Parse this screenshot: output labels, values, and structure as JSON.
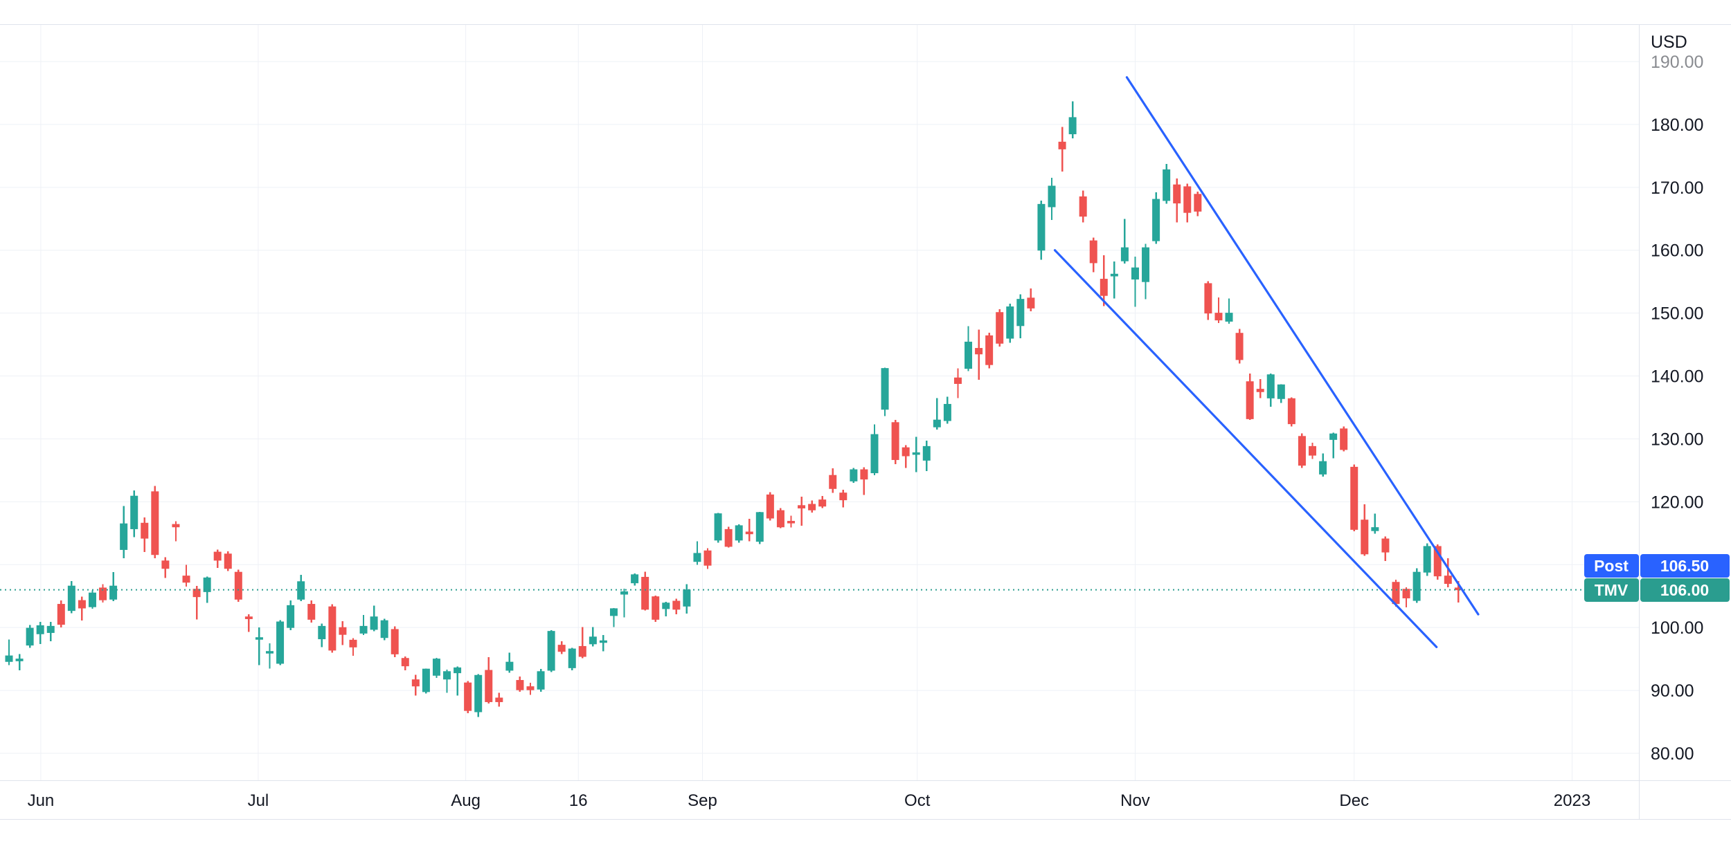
{
  "price_axis": {
    "unit": "USD",
    "ticks": [
      "190.00",
      "180.00",
      "170.00",
      "160.00",
      "150.00",
      "140.00",
      "130.00",
      "120.00",
      "110.00",
      "100.00",
      "90.00",
      "80.00"
    ]
  },
  "price_labels": {
    "post": {
      "label": "Post",
      "value": "106.50",
      "color": "#2962ff"
    },
    "series": {
      "label": "TMV",
      "value": "106.00",
      "color": "#2a9d8f"
    }
  },
  "chart_data": {
    "type": "candlestick",
    "symbol": "TMV",
    "unit": "USD",
    "title": "",
    "ylim": [
      75.5,
      196
    ],
    "grid": true,
    "up_color": "#26a69a",
    "down_color": "#ef5350",
    "trend_color": "#2962ff",
    "reference_line": {
      "price": 106.0,
      "style": "dotted",
      "color": "#2a9d8f",
      "note": "last close / TMV price line"
    },
    "post_market_price": 106.5,
    "last_close": 106.0,
    "x_ticks": [
      {
        "label": "Jun",
        "index": 3.05
      },
      {
        "label": "Jul",
        "index": 23.9
      },
      {
        "label": "Aug",
        "index": 43.8
      },
      {
        "label": "16",
        "index": 54.6
      },
      {
        "label": "Sep",
        "index": 66.5
      },
      {
        "label": "Oct",
        "index": 87.1
      },
      {
        "label": "Nov",
        "index": 108.0
      },
      {
        "label": "Dec",
        "index": 129.0
      },
      {
        "label": "2023",
        "index": 149.9
      }
    ],
    "trend_lines": [
      {
        "x1_index": 107.2,
        "price1": 187.5,
        "x2_index": 140.9,
        "price2": 102.1
      },
      {
        "x1_index": 100.3,
        "price1": 160.0,
        "x2_index": 136.9,
        "price2": 96.9
      }
    ],
    "candles_format": [
      "open",
      "high",
      "low",
      "close"
    ],
    "candles": [
      [
        94.6,
        98.1,
        94.0,
        95.5
      ],
      [
        94.7,
        95.8,
        93.2,
        95.0
      ],
      [
        97.2,
        100.4,
        96.8,
        99.9
      ],
      [
        99.0,
        100.9,
        97.4,
        100.3
      ],
      [
        99.2,
        100.9,
        97.8,
        100.2
      ],
      [
        103.7,
        104.3,
        100.0,
        100.5
      ],
      [
        102.7,
        107.4,
        102.3,
        106.6
      ],
      [
        104.3,
        104.9,
        101.1,
        103.1
      ],
      [
        103.3,
        105.9,
        103.0,
        105.5
      ],
      [
        106.3,
        106.9,
        104.0,
        104.4
      ],
      [
        104.5,
        108.8,
        104.2,
        106.6
      ],
      [
        112.4,
        119.3,
        111.0,
        116.5
      ],
      [
        115.7,
        121.8,
        114.4,
        120.9
      ],
      [
        116.6,
        117.5,
        112.0,
        114.2
      ],
      [
        121.6,
        122.5,
        111.0,
        111.6
      ],
      [
        110.6,
        111.2,
        107.9,
        109.4
      ],
      [
        116.4,
        116.9,
        113.7,
        116.0
      ],
      [
        108.2,
        110.0,
        106.5,
        107.2
      ],
      [
        106.1,
        106.6,
        101.3,
        104.9
      ],
      [
        105.7,
        108.1,
        103.9,
        107.9
      ],
      [
        112.0,
        112.4,
        109.5,
        110.7
      ],
      [
        111.7,
        112.1,
        109.0,
        109.4
      ],
      [
        108.8,
        109.2,
        104.1,
        104.5
      ],
      [
        101.7,
        102.1,
        99.3,
        101.4
      ],
      [
        98.2,
        100.0,
        94.0,
        98.4
      ],
      [
        96.0,
        97.5,
        93.5,
        96.2
      ],
      [
        94.3,
        101.2,
        94.0,
        100.9
      ],
      [
        100.0,
        104.3,
        99.6,
        103.5
      ],
      [
        104.5,
        108.4,
        104.2,
        107.3
      ],
      [
        103.7,
        104.3,
        100.8,
        101.3
      ],
      [
        98.2,
        100.6,
        96.9,
        100.2
      ],
      [
        103.3,
        103.7,
        96.0,
        96.4
      ],
      [
        100.0,
        101.0,
        97.2,
        98.9
      ],
      [
        98.0,
        98.3,
        95.5,
        96.9
      ],
      [
        99.1,
        102.0,
        98.8,
        100.2
      ],
      [
        99.7,
        103.5,
        99.4,
        101.7
      ],
      [
        98.4,
        101.4,
        98.0,
        101.1
      ],
      [
        99.7,
        100.2,
        95.3,
        95.8
      ],
      [
        95.1,
        95.4,
        93.2,
        93.9
      ],
      [
        91.7,
        92.5,
        89.2,
        90.7
      ],
      [
        89.8,
        93.5,
        89.5,
        93.4
      ],
      [
        92.4,
        95.2,
        92.0,
        95.0
      ],
      [
        91.8,
        93.3,
        89.6,
        93.0
      ],
      [
        92.8,
        93.8,
        89.2,
        93.6
      ],
      [
        91.2,
        91.5,
        86.4,
        86.8
      ],
      [
        86.6,
        92.6,
        85.8,
        92.4
      ],
      [
        93.2,
        95.3,
        87.9,
        88.2
      ],
      [
        88.8,
        89.6,
        87.4,
        88.2
      ],
      [
        93.2,
        96.0,
        92.8,
        94.5
      ],
      [
        91.6,
        92.2,
        89.8,
        90.1
      ],
      [
        90.6,
        91.2,
        89.3,
        90.1
      ],
      [
        90.2,
        93.4,
        89.8,
        93.0
      ],
      [
        93.2,
        99.6,
        92.9,
        99.4
      ],
      [
        97.2,
        97.8,
        95.8,
        96.2
      ],
      [
        93.6,
        96.8,
        93.2,
        96.6
      ],
      [
        97.0,
        100.1,
        95.1,
        95.4
      ],
      [
        97.4,
        100.1,
        97.0,
        98.5
      ],
      [
        97.7,
        98.8,
        96.2,
        97.9
      ],
      [
        101.9,
        103.1,
        100.1,
        103.0
      ],
      [
        105.3,
        106.2,
        101.6,
        105.7
      ],
      [
        107.1,
        108.6,
        106.7,
        108.4
      ],
      [
        108.0,
        108.9,
        102.7,
        102.9
      ],
      [
        104.9,
        105.1,
        100.9,
        101.3
      ],
      [
        103.0,
        104.1,
        101.8,
        103.9
      ],
      [
        104.2,
        104.6,
        102.1,
        102.9
      ],
      [
        103.4,
        106.9,
        102.2,
        106.0
      ],
      [
        110.5,
        113.7,
        110.0,
        111.8
      ],
      [
        112.2,
        112.6,
        109.3,
        109.9
      ],
      [
        113.9,
        118.2,
        113.5,
        118.1
      ],
      [
        115.6,
        116.0,
        112.7,
        112.9
      ],
      [
        113.9,
        116.4,
        113.5,
        116.2
      ],
      [
        115.2,
        117.3,
        113.7,
        114.9
      ],
      [
        113.7,
        118.4,
        113.3,
        118.3
      ],
      [
        121.1,
        121.5,
        117.0,
        117.4
      ],
      [
        118.6,
        119.0,
        115.8,
        116.0
      ],
      [
        116.9,
        117.8,
        115.9,
        116.7
      ],
      [
        119.4,
        120.8,
        116.2,
        119.0
      ],
      [
        119.6,
        120.2,
        118.3,
        118.7
      ],
      [
        120.3,
        120.9,
        119.0,
        119.3
      ],
      [
        124.2,
        125.3,
        121.4,
        122.1
      ],
      [
        121.4,
        121.9,
        119.1,
        120.3
      ],
      [
        123.3,
        125.4,
        123.0,
        125.1
      ],
      [
        125.1,
        125.5,
        121.1,
        123.6
      ],
      [
        124.6,
        132.3,
        124.2,
        130.7
      ],
      [
        134.7,
        141.3,
        133.6,
        141.2
      ],
      [
        132.6,
        133.0,
        126.0,
        126.7
      ],
      [
        128.6,
        129.0,
        125.4,
        127.3
      ],
      [
        127.6,
        130.3,
        124.7,
        127.8
      ],
      [
        126.6,
        129.7,
        124.9,
        128.8
      ],
      [
        131.9,
        136.5,
        131.5,
        133.0
      ],
      [
        132.9,
        136.7,
        132.4,
        135.5
      ],
      [
        139.7,
        141.2,
        136.5,
        138.8
      ],
      [
        141.2,
        147.9,
        140.8,
        145.4
      ],
      [
        144.4,
        147.4,
        139.4,
        143.5
      ],
      [
        146.4,
        146.9,
        141.2,
        141.8
      ],
      [
        150.1,
        150.6,
        144.7,
        145.2
      ],
      [
        146.0,
        151.5,
        145.3,
        151.0
      ],
      [
        148.0,
        153.0,
        146.0,
        152.2
      ],
      [
        152.4,
        153.9,
        150.3,
        150.8
      ],
      [
        160.0,
        167.9,
        158.5,
        167.3
      ],
      [
        166.9,
        171.5,
        164.8,
        170.2
      ],
      [
        177.2,
        179.6,
        172.5,
        176.1
      ],
      [
        178.5,
        183.7,
        177.8,
        181.1
      ],
      [
        168.5,
        169.5,
        164.4,
        165.4
      ],
      [
        161.5,
        162.0,
        156.5,
        158.0
      ],
      [
        155.4,
        159.2,
        151.1,
        152.8
      ],
      [
        155.9,
        158.2,
        152.3,
        156.2
      ],
      [
        158.3,
        165.0,
        157.9,
        160.4
      ],
      [
        155.4,
        159.0,
        151.0,
        157.2
      ],
      [
        155.0,
        161.0,
        152.2,
        160.4
      ],
      [
        161.5,
        169.2,
        161.0,
        168.1
      ],
      [
        167.9,
        173.7,
        167.4,
        172.8
      ],
      [
        170.4,
        171.4,
        164.4,
        167.5
      ],
      [
        170.1,
        170.6,
        164.4,
        166.0
      ],
      [
        168.9,
        169.3,
        165.4,
        166.2
      ],
      [
        154.7,
        155.1,
        148.9,
        150.0
      ],
      [
        150.0,
        152.5,
        148.4,
        148.9
      ],
      [
        148.7,
        152.3,
        148.3,
        150.0
      ],
      [
        146.8,
        147.5,
        142.0,
        142.6
      ],
      [
        139.1,
        140.4,
        133.0,
        133.2
      ],
      [
        137.9,
        139.5,
        136.5,
        137.5
      ],
      [
        136.5,
        140.4,
        135.1,
        140.2
      ],
      [
        136.4,
        138.7,
        135.7,
        138.6
      ],
      [
        136.4,
        136.6,
        132.0,
        132.4
      ],
      [
        130.4,
        130.9,
        125.4,
        125.8
      ],
      [
        128.8,
        129.4,
        126.8,
        127.4
      ],
      [
        124.4,
        127.7,
        124.0,
        126.4
      ],
      [
        129.9,
        131.0,
        126.9,
        130.8
      ],
      [
        131.6,
        132.0,
        128.0,
        128.3
      ],
      [
        125.5,
        125.9,
        115.3,
        115.6
      ],
      [
        117.1,
        119.6,
        111.4,
        111.7
      ],
      [
        115.4,
        118.1,
        114.9,
        115.9
      ],
      [
        114.1,
        114.5,
        110.6,
        112.0
      ],
      [
        107.2,
        107.6,
        103.3,
        103.8
      ],
      [
        106.1,
        106.4,
        103.2,
        104.7
      ],
      [
        104.3,
        109.4,
        103.9,
        108.8
      ],
      [
        108.8,
        113.4,
        108.2,
        112.9
      ],
      [
        112.9,
        113.2,
        107.6,
        108.2
      ],
      [
        108.2,
        111.0,
        106.4,
        107.0
      ],
      [
        106.3,
        107.4,
        104.0,
        106.0
      ]
    ]
  }
}
